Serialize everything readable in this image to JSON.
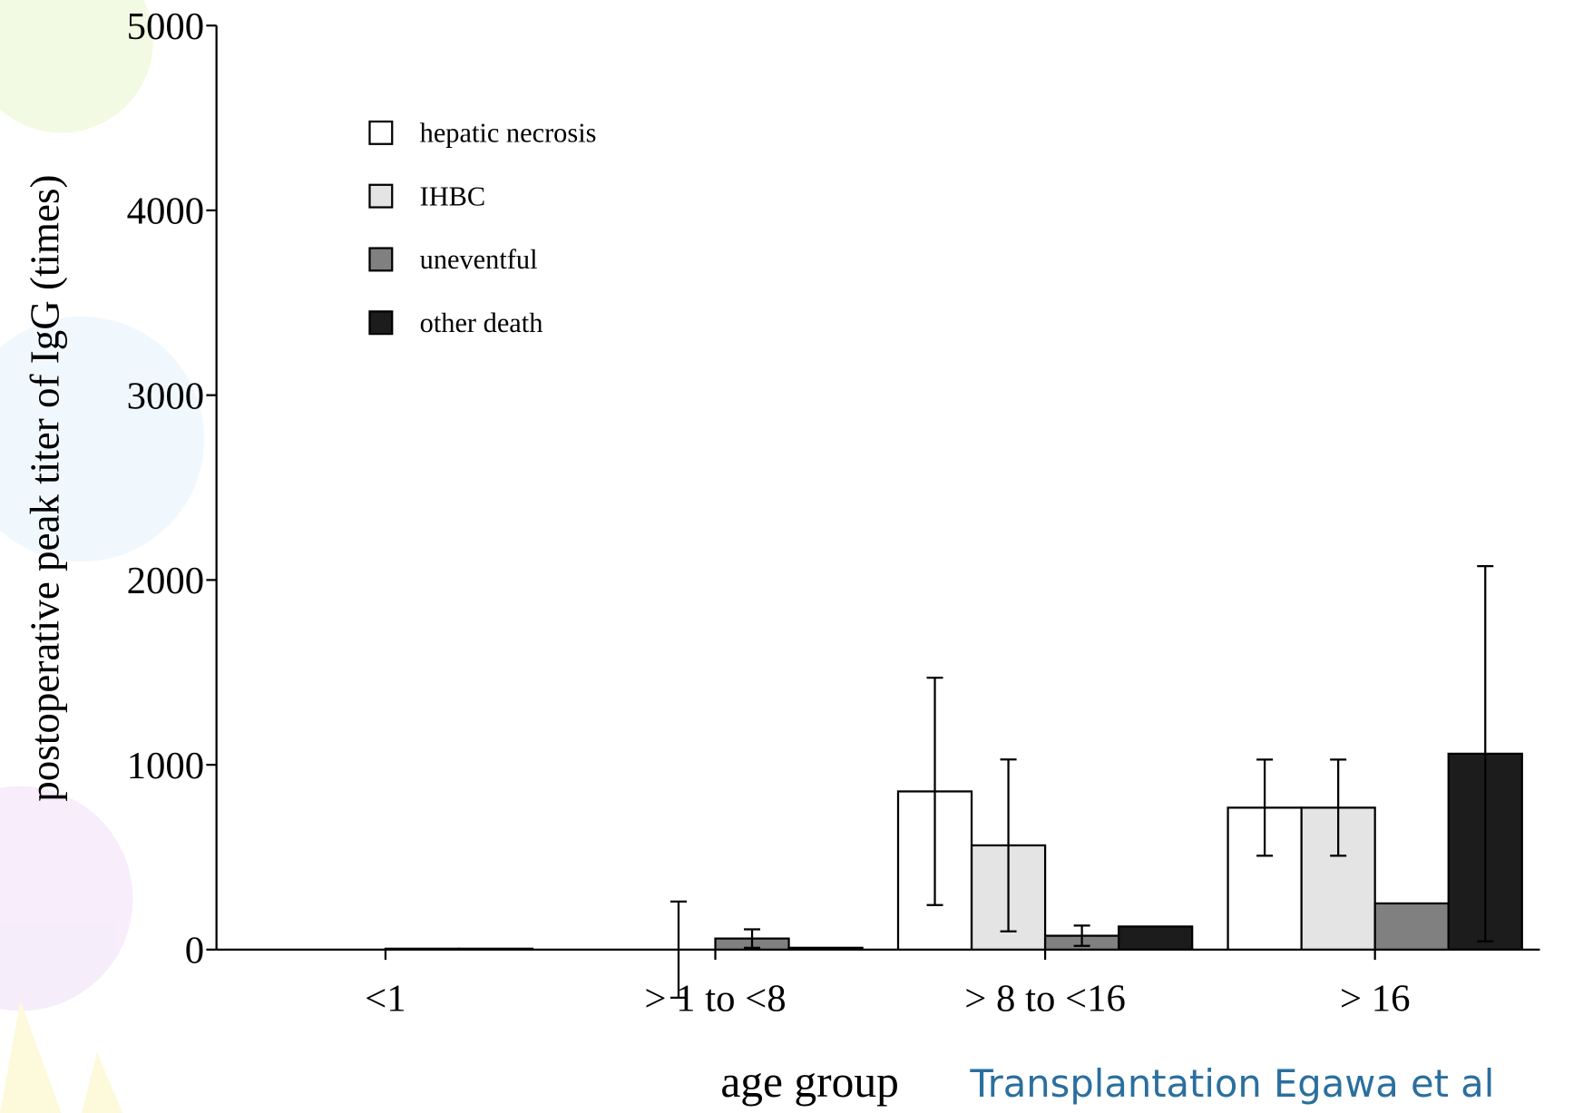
{
  "chart_data": {
    "type": "bar",
    "y_label": "postoperative peak titer of IgG (times)",
    "x_label": "age group",
    "annotation": "Transplantation Egawa et al",
    "categories": [
      "<1",
      "> 1 to <8",
      "> 8 to <16",
      "> 16"
    ],
    "series": [
      {
        "name": "hepatic necrosis",
        "color": "#ffffff",
        "values": [
          0,
          0,
          856,
          768
        ],
        "errors": [
          null,
          null,
          615,
          260
        ]
      },
      {
        "name": "IHBC",
        "color": "#e4e4e4",
        "values": [
          0,
          0,
          564,
          768
        ],
        "errors": [
          null,
          260,
          465,
          260
        ]
      },
      {
        "name": "uneventful",
        "color": "#808080",
        "values": [
          5,
          60,
          75,
          250
        ],
        "errors": [
          null,
          50,
          55,
          null
        ]
      },
      {
        "name": "other death",
        "color": "#1c1c1c",
        "values": [
          5,
          10,
          125,
          1060
        ],
        "errors": [
          null,
          null,
          null,
          1015
        ]
      }
    ],
    "ylim": [
      0,
      5000
    ],
    "yticks": [
      0,
      1000,
      2000,
      3000,
      4000,
      5000
    ]
  }
}
